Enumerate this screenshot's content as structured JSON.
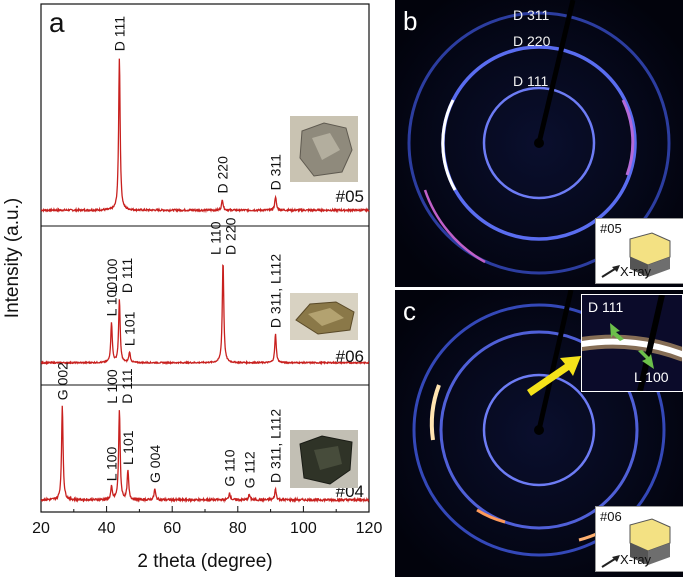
{
  "chart_data": [
    {
      "panel": "a",
      "type": "line",
      "xlabel": "2 theta (degree)",
      "ylabel": "Intensity (a.u.)",
      "xlim": [
        20,
        120
      ],
      "xticks": [
        20,
        40,
        60,
        80,
        100,
        120
      ],
      "line_color": "#c8201e",
      "series": [
        {
          "name": "#05",
          "peaks": [
            {
              "x": 43.9,
              "height": 1.0,
              "label": "D 111"
            },
            {
              "x": 75.3,
              "height": 0.07,
              "label": "D 220"
            },
            {
              "x": 91.5,
              "height": 0.09,
              "label": "D 311"
            }
          ]
        },
        {
          "name": "#06",
          "peaks": [
            {
              "x": 41.5,
              "height": 0.38,
              "label": "L 100"
            },
            {
              "x": 43.9,
              "height": 0.6,
              "label": "L 100\nD 111"
            },
            {
              "x": 47.0,
              "height": 0.1,
              "label": "L 101"
            },
            {
              "x": 75.5,
              "height": 0.96,
              "label": "L 110\nD 220"
            },
            {
              "x": 91.5,
              "height": 0.27,
              "label": "D 311, L112"
            }
          ]
        },
        {
          "name": "#04",
          "peaks": [
            {
              "x": 26.5,
              "height": 0.52,
              "label": "G 002"
            },
            {
              "x": 41.5,
              "height": 0.07,
              "label": "L 100"
            },
            {
              "x": 43.9,
              "height": 0.5,
              "label": "L 100\nD 111"
            },
            {
              "x": 46.5,
              "height": 0.16,
              "label": "L 101"
            },
            {
              "x": 54.7,
              "height": 0.06,
              "label": "G 004"
            },
            {
              "x": 77.5,
              "height": 0.04,
              "label": "G 110"
            },
            {
              "x": 83.5,
              "height": 0.03,
              "label": "G 112"
            },
            {
              "x": 91.5,
              "height": 0.06,
              "label": "D 311, L112"
            }
          ]
        }
      ]
    }
  ],
  "figure": {
    "panel_a_letter": "a",
    "panel_b": {
      "letter": "b",
      "ring_labels": [
        "D 311",
        "D 220",
        "D 111"
      ],
      "sample_id": "#05",
      "xray_label": "X-ray"
    },
    "panel_c": {
      "letter": "c",
      "inset_labels": [
        "D 111",
        "L 100"
      ],
      "sample_id": "#06",
      "xray_label": "X-ray"
    }
  },
  "colors": {
    "xrd_line": "#c8201e",
    "pattern_background": "#02030c",
    "ring_glow": "#4a5de0",
    "arrow_yellow": "#f4e21a",
    "arrow_green": "#6cc04a"
  }
}
